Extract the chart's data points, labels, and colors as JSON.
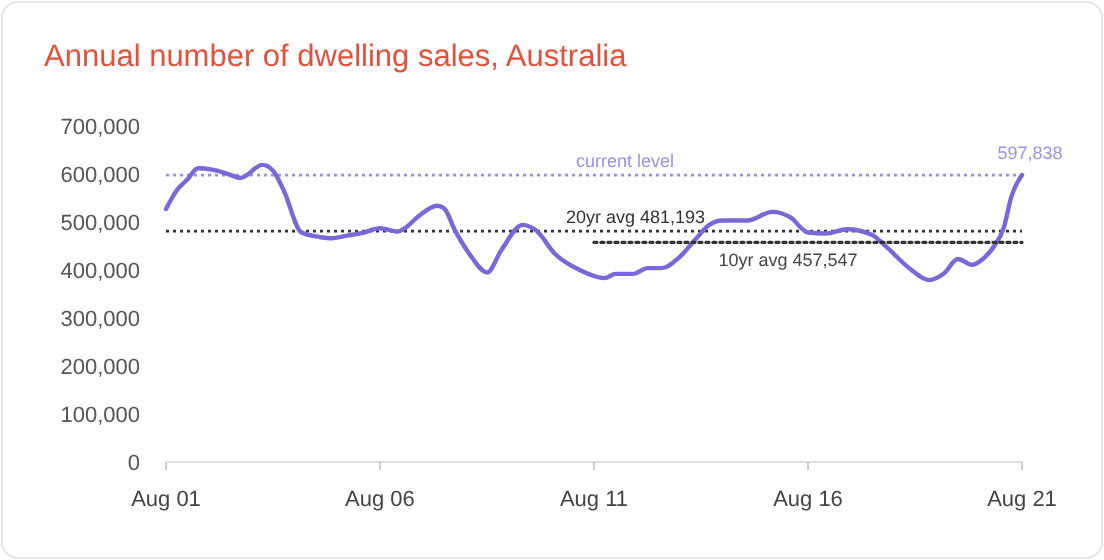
{
  "chart_data": {
    "type": "line",
    "title": "Annual number of dwelling sales, Australia",
    "xlim": [
      "2001-08",
      "2021-08"
    ],
    "xticks": [
      {
        "value": "2001-08",
        "label": "Aug 01"
      },
      {
        "value": "2006-08",
        "label": "Aug 06"
      },
      {
        "value": "2011-08",
        "label": "Aug 11"
      },
      {
        "value": "2016-08",
        "label": "Aug 16"
      },
      {
        "value": "2021-08",
        "label": "Aug 21"
      }
    ],
    "ylim": [
      0,
      700000
    ],
    "yticks": [
      {
        "value": 0,
        "label": "0"
      },
      {
        "value": 100000,
        "label": "100,000"
      },
      {
        "value": 200000,
        "label": "200,000"
      },
      {
        "value": 300000,
        "label": "300,000"
      },
      {
        "value": 400000,
        "label": "400,000"
      },
      {
        "value": 500000,
        "label": "500,000"
      },
      {
        "value": 600000,
        "label": "600,000"
      },
      {
        "value": 700000,
        "label": "700,000"
      }
    ],
    "grid": false,
    "series": [
      {
        "color": "#7b68d8",
        "x": [
          "2001-08",
          "2001-11",
          "2002-02",
          "2002-05",
          "2002-09",
          "2003-01",
          "2003-05",
          "2003-11",
          "2004-02",
          "2004-05",
          "2004-10",
          "2005-03",
          "2005-06",
          "2005-11",
          "2006-03",
          "2006-08",
          "2007-01",
          "2007-03",
          "2007-07",
          "2007-12",
          "2008-02",
          "2008-05",
          "2008-09",
          "2009-02",
          "2009-06",
          "2009-12",
          "2010-04",
          "2010-09",
          "2011-04",
          "2011-11",
          "2012-02",
          "2012-07",
          "2012-11",
          "2013-03",
          "2013-08",
          "2014-01",
          "2014-04",
          "2014-08",
          "2015-03",
          "2015-10",
          "2016-03",
          "2016-08",
          "2017-01",
          "2017-07",
          "2018-02",
          "2018-06",
          "2019-01",
          "2019-06",
          "2019-10",
          "2020-02",
          "2020-06",
          "2020-09",
          "2020-12",
          "2021-03",
          "2021-05",
          "2021-08"
        ],
        "values": [
          527000,
          566000,
          589000,
          612000,
          609000,
          601000,
          592000,
          619000,
          607000,
          566000,
          478000,
          469000,
          466000,
          472000,
          477000,
          487000,
          480000,
          487000,
          513000,
          534000,
          528000,
          483000,
          434000,
          395000,
          441000,
          494000,
          481000,
          434000,
          400000,
          383000,
          392000,
          392000,
          404000,
          404000,
          427000,
          469000,
          492000,
          503000,
          503000,
          521000,
          510000,
          478000,
          476000,
          485000,
          473000,
          448000,
          400000,
          379000,
          392000,
          423000,
          411000,
          423000,
          448000,
          490000,
          552000,
          597838
        ]
      },
      {
        "name": "10yr avg 457,547",
        "color": "#333333",
        "line_style": "dotted",
        "x": [
          "2011-08",
          "2021-08"
        ],
        "values": [
          457547,
          457547
        ]
      }
    ],
    "ref_lines": [
      {
        "axis": "y",
        "value": 597838,
        "label": "current level",
        "color": "#9d8fe6",
        "line_style": "dotted"
      },
      {
        "axis": "y",
        "value": 481193,
        "label": "20yr avg 481,193",
        "color": "#333333",
        "line_style": "dotted"
      }
    ],
    "annotations": [
      {
        "text": "597,838",
        "x": "2021-08",
        "y": 597838
      }
    ]
  }
}
